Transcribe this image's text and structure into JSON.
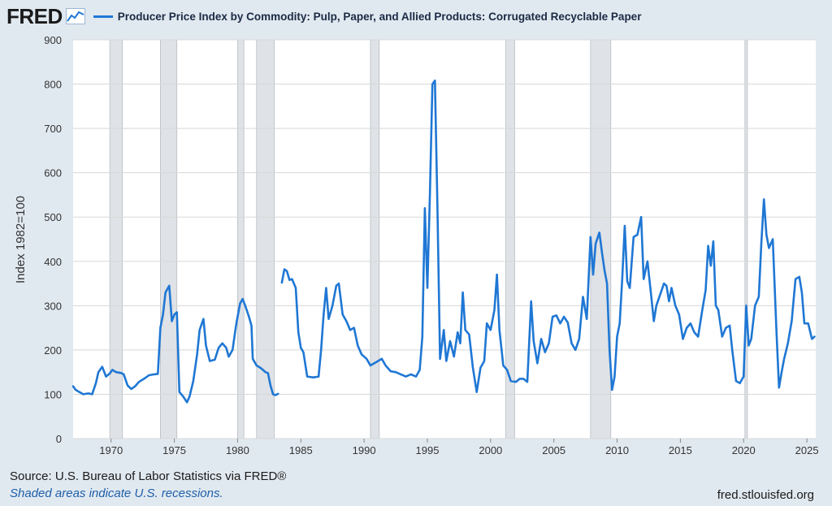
{
  "brand": {
    "logo_text": "FRED"
  },
  "footer": {
    "source": "Source: U.S. Bureau of Labor Statistics via FRED®",
    "recession_note": "Shaded areas indicate U.S. recessions.",
    "site": "fred.stlouisfed.org"
  },
  "colors": {
    "series": "#1f77d4",
    "recession": "#dfe2e6",
    "background": "#e1e9f0",
    "plot_bg": "#ffffff"
  },
  "chart_data": {
    "type": "line",
    "title": "Producer Price Index by Commodity: Pulp, Paper, and Allied Products: Corrugated Recyclable Paper",
    "xlabel": "",
    "ylabel": "Index 1982=100",
    "xlim": [
      1967.0,
      2025.7
    ],
    "ylim": [
      0,
      900
    ],
    "yticks": [
      0,
      100,
      200,
      300,
      400,
      500,
      600,
      700,
      800,
      900
    ],
    "xticks": [
      1970,
      1975,
      1980,
      1985,
      1990,
      1995,
      2000,
      2005,
      2010,
      2015,
      2020,
      2025
    ],
    "recessions": [
      [
        1969.9,
        1970.9
      ],
      [
        1973.9,
        1975.2
      ],
      [
        1980.0,
        1980.5
      ],
      [
        1981.5,
        1982.9
      ],
      [
        1990.5,
        1991.2
      ],
      [
        2001.2,
        2001.9
      ],
      [
        2007.9,
        2009.5
      ],
      [
        2020.1,
        2020.3
      ]
    ],
    "series": [
      {
        "name": "Producer Price Index by Commodity: Pulp, Paper, and Allied Products: Corrugated Recyclable Paper",
        "segments": [
          [
            [
              1967.0,
              118
            ],
            [
              1967.2,
              110
            ],
            [
              1967.5,
              105
            ],
            [
              1967.8,
              100
            ],
            [
              1968.2,
              102
            ],
            [
              1968.5,
              100
            ],
            [
              1968.8,
              125
            ],
            [
              1969.0,
              150
            ],
            [
              1969.3,
              162
            ],
            [
              1969.6,
              140
            ],
            [
              1969.9,
              147
            ],
            [
              1970.1,
              155
            ],
            [
              1970.4,
              150
            ],
            [
              1970.8,
              148
            ],
            [
              1971.0,
              145
            ],
            [
              1971.3,
              120
            ],
            [
              1971.6,
              112
            ],
            [
              1971.9,
              118
            ],
            [
              1972.2,
              128
            ],
            [
              1972.6,
              135
            ],
            [
              1973.0,
              143
            ],
            [
              1973.4,
              145
            ],
            [
              1973.7,
              146
            ],
            [
              1973.9,
              250
            ],
            [
              1974.1,
              280
            ],
            [
              1974.3,
              330
            ],
            [
              1974.6,
              345
            ],
            [
              1974.8,
              265
            ],
            [
              1975.0,
              280
            ],
            [
              1975.2,
              285
            ],
            [
              1975.4,
              105
            ],
            [
              1975.7,
              95
            ],
            [
              1976.0,
              82
            ],
            [
              1976.2,
              95
            ],
            [
              1976.5,
              130
            ],
            [
              1976.8,
              190
            ],
            [
              1977.0,
              245
            ],
            [
              1977.3,
              270
            ],
            [
              1977.5,
              210
            ],
            [
              1977.8,
              175
            ],
            [
              1978.2,
              178
            ],
            [
              1978.5,
              205
            ],
            [
              1978.8,
              215
            ],
            [
              1979.1,
              205
            ],
            [
              1979.3,
              185
            ],
            [
              1979.6,
              200
            ],
            [
              1979.9,
              260
            ],
            [
              1980.2,
              305
            ],
            [
              1980.4,
              315
            ],
            [
              1980.6,
              300
            ],
            [
              1980.9,
              275
            ],
            [
              1981.1,
              255
            ],
            [
              1981.2,
              180
            ],
            [
              1981.5,
              165
            ],
            [
              1981.8,
              160
            ],
            [
              1982.0,
              155
            ],
            [
              1982.2,
              150
            ],
            [
              1982.4,
              148
            ],
            [
              1982.6,
              120
            ],
            [
              1982.8,
              100
            ],
            [
              1983.0,
              98
            ],
            [
              1983.2,
              101
            ]
          ],
          [
            [
              1983.5,
              352
            ],
            [
              1983.7,
              382
            ],
            [
              1983.9,
              378
            ],
            [
              1984.1,
              358
            ],
            [
              1984.3,
              360
            ],
            [
              1984.6,
              340
            ],
            [
              1984.8,
              240
            ],
            [
              1985.0,
              205
            ],
            [
              1985.2,
              195
            ],
            [
              1985.5,
              140
            ],
            [
              1986.0,
              138
            ],
            [
              1986.4,
              140
            ],
            [
              1986.6,
              200
            ],
            [
              1986.8,
              280
            ],
            [
              1987.0,
              340
            ],
            [
              1987.2,
              270
            ],
            [
              1987.5,
              300
            ],
            [
              1987.8,
              345
            ],
            [
              1988.0,
              350
            ],
            [
              1988.3,
              280
            ],
            [
              1988.6,
              265
            ],
            [
              1988.9,
              245
            ],
            [
              1989.2,
              250
            ],
            [
              1989.5,
              210
            ],
            [
              1989.8,
              190
            ],
            [
              1990.2,
              180
            ],
            [
              1990.5,
              165
            ],
            [
              1990.8,
              170
            ],
            [
              1991.1,
              175
            ],
            [
              1991.4,
              180
            ],
            [
              1991.7,
              165
            ],
            [
              1992.1,
              152
            ],
            [
              1992.5,
              150
            ],
            [
              1992.9,
              145
            ],
            [
              1993.3,
              140
            ],
            [
              1993.7,
              145
            ],
            [
              1994.1,
              140
            ],
            [
              1994.4,
              155
            ],
            [
              1994.6,
              230
            ],
            [
              1994.8,
              520
            ],
            [
              1995.0,
              340
            ],
            [
              1995.2,
              550
            ],
            [
              1995.4,
              800
            ],
            [
              1995.6,
              808
            ],
            [
              1995.8,
              520
            ],
            [
              1996.0,
              180
            ],
            [
              1996.3,
              245
            ],
            [
              1996.5,
              175
            ],
            [
              1996.8,
              220
            ],
            [
              1997.1,
              185
            ],
            [
              1997.4,
              240
            ],
            [
              1997.6,
              215
            ],
            [
              1997.8,
              330
            ],
            [
              1998.0,
              245
            ],
            [
              1998.3,
              235
            ],
            [
              1998.6,
              160
            ],
            [
              1998.9,
              105
            ],
            [
              1999.2,
              160
            ],
            [
              1999.5,
              175
            ],
            [
              1999.7,
              260
            ],
            [
              2000.0,
              245
            ],
            [
              2000.3,
              290
            ],
            [
              2000.5,
              370
            ],
            [
              2000.7,
              245
            ],
            [
              2001.0,
              165
            ],
            [
              2001.3,
              155
            ],
            [
              2001.6,
              130
            ],
            [
              2002.0,
              128
            ],
            [
              2002.3,
              135
            ],
            [
              2002.6,
              135
            ],
            [
              2002.9,
              128
            ],
            [
              2003.2,
              310
            ],
            [
              2003.4,
              220
            ],
            [
              2003.7,
              170
            ],
            [
              2004.0,
              225
            ],
            [
              2004.3,
              195
            ],
            [
              2004.6,
              215
            ],
            [
              2004.9,
              275
            ],
            [
              2005.2,
              278
            ],
            [
              2005.5,
              260
            ],
            [
              2005.8,
              275
            ],
            [
              2006.1,
              262
            ],
            [
              2006.4,
              215
            ],
            [
              2006.7,
              200
            ],
            [
              2007.0,
              225
            ],
            [
              2007.3,
              320
            ],
            [
              2007.6,
              270
            ],
            [
              2007.9,
              455
            ],
            [
              2008.1,
              370
            ],
            [
              2008.3,
              440
            ],
            [
              2008.6,
              465
            ],
            [
              2008.8,
              420
            ],
            [
              2009.0,
              380
            ],
            [
              2009.2,
              350
            ],
            [
              2009.4,
              200
            ],
            [
              2009.6,
              110
            ],
            [
              2009.8,
              140
            ],
            [
              2010.0,
              230
            ],
            [
              2010.2,
              260
            ],
            [
              2010.4,
              360
            ],
            [
              2010.6,
              480
            ],
            [
              2010.8,
              355
            ],
            [
              2011.0,
              340
            ],
            [
              2011.3,
              455
            ],
            [
              2011.6,
              460
            ],
            [
              2011.9,
              500
            ],
            [
              2012.1,
              360
            ],
            [
              2012.4,
              400
            ],
            [
              2012.7,
              320
            ],
            [
              2012.9,
              265
            ],
            [
              2013.1,
              300
            ],
            [
              2013.4,
              325
            ],
            [
              2013.7,
              350
            ],
            [
              2013.9,
              345
            ],
            [
              2014.1,
              310
            ],
            [
              2014.3,
              340
            ],
            [
              2014.6,
              300
            ],
            [
              2014.9,
              280
            ],
            [
              2015.2,
              225
            ],
            [
              2015.5,
              250
            ],
            [
              2015.8,
              260
            ],
            [
              2016.1,
              240
            ],
            [
              2016.4,
              230
            ],
            [
              2016.7,
              285
            ],
            [
              2017.0,
              335
            ],
            [
              2017.2,
              435
            ],
            [
              2017.4,
              390
            ],
            [
              2017.6,
              445
            ],
            [
              2017.8,
              300
            ],
            [
              2018.0,
              290
            ],
            [
              2018.3,
              230
            ],
            [
              2018.6,
              250
            ],
            [
              2018.9,
              255
            ],
            [
              2019.1,
              200
            ],
            [
              2019.4,
              130
            ],
            [
              2019.7,
              125
            ],
            [
              2020.0,
              140
            ],
            [
              2020.2,
              300
            ],
            [
              2020.4,
              210
            ],
            [
              2020.6,
              225
            ],
            [
              2020.9,
              300
            ],
            [
              2021.2,
              320
            ],
            [
              2021.4,
              440
            ],
            [
              2021.6,
              540
            ],
            [
              2021.8,
              460
            ],
            [
              2022.0,
              430
            ],
            [
              2022.3,
              450
            ],
            [
              2022.6,
              240
            ],
            [
              2022.8,
              115
            ],
            [
              2023.0,
              150
            ],
            [
              2023.2,
              180
            ],
            [
              2023.5,
              215
            ],
            [
              2023.8,
              265
            ],
            [
              2024.1,
              360
            ],
            [
              2024.4,
              365
            ],
            [
              2024.6,
              330
            ],
            [
              2024.8,
              260
            ],
            [
              2025.1,
              260
            ],
            [
              2025.4,
              225
            ],
            [
              2025.6,
              230
            ]
          ]
        ]
      }
    ]
  }
}
